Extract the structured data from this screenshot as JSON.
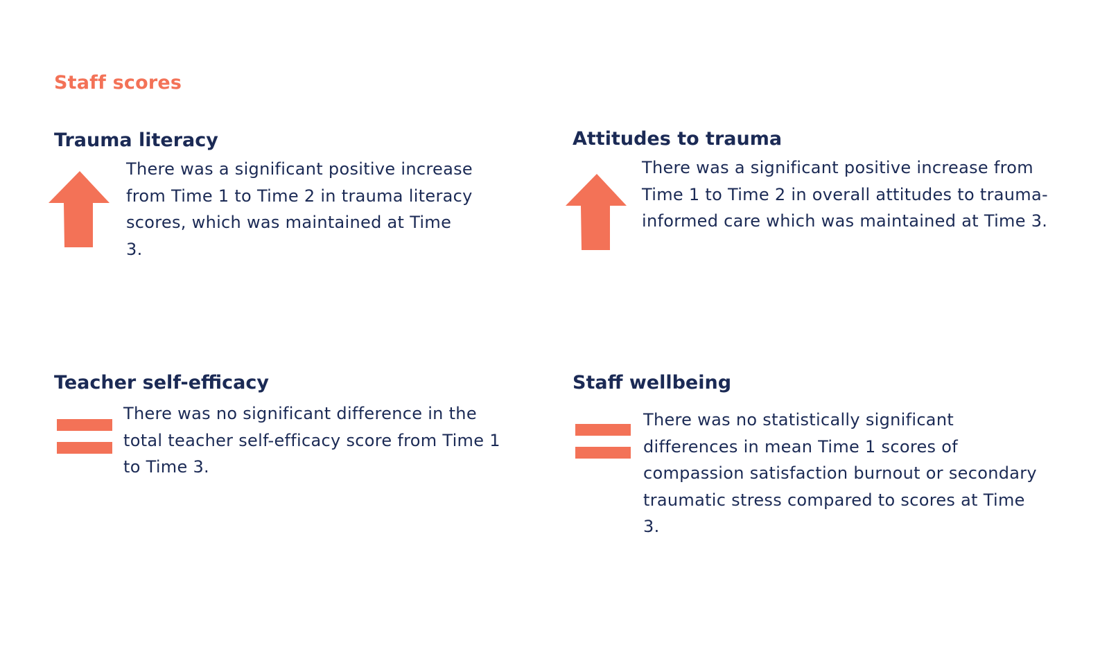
{
  "section_title": "Staff scores",
  "accent_color": "#f37257",
  "text_color": "#1b2a55",
  "cards": [
    {
      "heading": "Trauma literacy",
      "icon": "arrow-up-icon",
      "text": "There was a significant positive increase from Time 1 to Time 2 in trauma literacy scores, which was maintained at Time 3."
    },
    {
      "heading": "Attitudes to trauma",
      "icon": "arrow-up-icon",
      "text": "There was a significant positive increase from Time 1 to Time 2 in overall attitudes to trauma-informed care which was maintained at Time 3."
    },
    {
      "heading": "Teacher self-efficacy",
      "icon": "equals-icon",
      "text": "There was no significant difference in the total teacher self-efficacy score from Time 1 to Time 3."
    },
    {
      "heading": "Staff wellbeing",
      "icon": "equals-icon",
      "text": "There was no statistically significant differences in mean Time 1 scores of compassion satisfaction burnout or secondary traumatic stress compared to scores at Time 3."
    }
  ]
}
